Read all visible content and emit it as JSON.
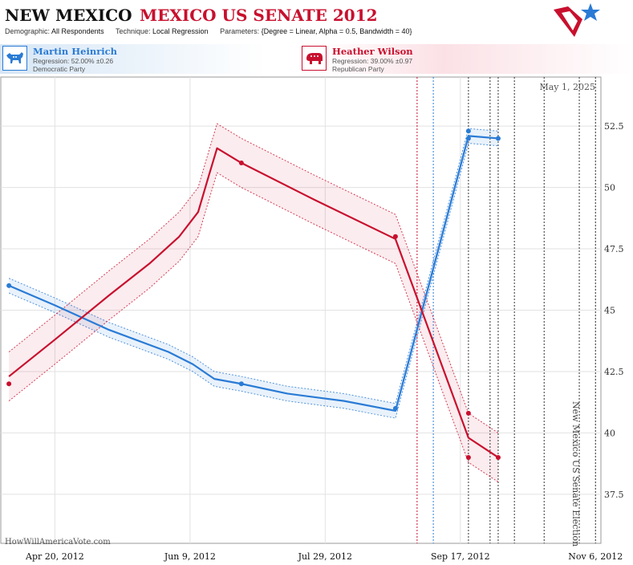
{
  "header": {
    "state": "NEW MEXICO",
    "race": "MEXICO US SENATE 2012",
    "demographic_label": "Demographic:",
    "demographic_value": "All Respondents",
    "technique_label": "Technique:",
    "technique_value": "Local Regression",
    "parameters_label": "Parameters:",
    "parameters_value": "{Degree = Linear, Alpha = 0.5, Bandwidth = 40}"
  },
  "candidates": {
    "dem": {
      "name": "Martin Heinrich",
      "regression": "Regression: 52.00% ±0.26",
      "party": "Democratic Party",
      "color": "#2a7bd5",
      "icon": "donkey-icon"
    },
    "rep": {
      "name": "Heather Wilson",
      "regression": "Regression: 39.00% ±0.97",
      "party": "Republican Party",
      "color": "#c8102e",
      "icon": "elephant-icon"
    }
  },
  "logo": {
    "icon": "star-flag-logo"
  },
  "chart_data": {
    "type": "line",
    "as_of": "May 1, 2025",
    "credit": "HowWillAmericaVote.com",
    "event_label": "New Mexico US Senate Election",
    "x_ticks": [
      "Apr 20, 2012",
      "Jun 9, 2012",
      "Jul 29, 2012",
      "Sep 17, 2012",
      "Nov 6, 2012"
    ],
    "x_tick_dates": [
      "2012-04-20",
      "2012-06-09",
      "2012-07-29",
      "2012-09-17",
      "2012-11-06"
    ],
    "x_range": [
      "2012-03-31",
      "2012-11-08"
    ],
    "y_ticks": [
      "37.5",
      "40",
      "42.5",
      "45",
      "47.5",
      "50",
      "52.5"
    ],
    "y_range": [
      35.5,
      54.5
    ],
    "grid": true,
    "event_dates": {
      "red": "2012-09-01",
      "blue": "2012-09-07",
      "black": [
        "2012-09-20",
        "2012-09-28",
        "2012-10-01",
        "2012-10-07",
        "2012-10-18",
        "2012-10-31",
        "2012-11-06"
      ]
    },
    "series": [
      {
        "name": "Martin Heinrich",
        "color": "#2a7bd5",
        "points": [
          [
            "2012-04-03",
            46.0
          ],
          [
            "2012-06-28",
            42.0
          ],
          [
            "2012-08-24",
            41.0
          ],
          [
            "2012-09-20",
            52.3
          ],
          [
            "2012-09-20",
            52.0
          ],
          [
            "2012-10-01",
            52.0
          ]
        ],
        "trend": [
          [
            "2012-04-03",
            46.0
          ],
          [
            "2012-04-20",
            45.2
          ],
          [
            "2012-05-10",
            44.2
          ],
          [
            "2012-06-01",
            43.3
          ],
          [
            "2012-06-10",
            42.8
          ],
          [
            "2012-06-18",
            42.2
          ],
          [
            "2012-06-28",
            42.0
          ],
          [
            "2012-07-15",
            41.6
          ],
          [
            "2012-08-05",
            41.3
          ],
          [
            "2012-08-24",
            40.9
          ],
          [
            "2012-09-20",
            52.1
          ],
          [
            "2012-10-01",
            52.0
          ]
        ],
        "band": 0.3
      },
      {
        "name": "Heather Wilson",
        "color": "#c8102e",
        "points": [
          [
            "2012-04-03",
            42.0
          ],
          [
            "2012-06-28",
            51.0
          ],
          [
            "2012-08-24",
            48.0
          ],
          [
            "2012-09-20",
            40.8
          ],
          [
            "2012-09-20",
            39.0
          ],
          [
            "2012-10-01",
            39.0
          ]
        ],
        "trend": [
          [
            "2012-04-03",
            42.3
          ],
          [
            "2012-04-20",
            43.8
          ],
          [
            "2012-05-10",
            45.6
          ],
          [
            "2012-05-25",
            46.9
          ],
          [
            "2012-06-05",
            48.0
          ],
          [
            "2012-06-12",
            49.0
          ],
          [
            "2012-06-16",
            50.5
          ],
          [
            "2012-06-19",
            51.6
          ],
          [
            "2012-06-28",
            51.0
          ],
          [
            "2012-07-25",
            49.5
          ],
          [
            "2012-08-24",
            47.9
          ],
          [
            "2012-09-20",
            39.8
          ],
          [
            "2012-10-01",
            39.0
          ]
        ],
        "band": 1.0
      }
    ]
  }
}
